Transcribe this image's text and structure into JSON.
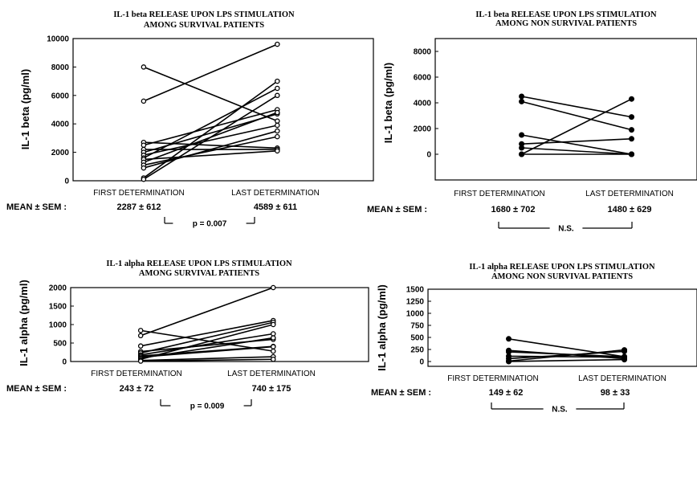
{
  "chart_data": [
    {
      "type": "line",
      "title": [
        "IL-1 beta RELEASE UPON LPS STIMULATION",
        "AMONG SURVIVAL PATIENTS"
      ],
      "ylabel": "IL-1  beta  (pg/ml)",
      "categories": [
        "FIRST DETERMINATION",
        "LAST DETERMINATION"
      ],
      "ylim": [
        0,
        10000
      ],
      "yticks": [
        "0",
        "2000",
        "4000",
        "6000",
        "8000",
        "10000"
      ],
      "yticks_values": [
        0,
        2000,
        4000,
        6000,
        8000,
        10000
      ],
      "marker": "open",
      "series": [
        {
          "values": [
            8000,
            4200
          ]
        },
        {
          "values": [
            5600,
            9600
          ]
        },
        {
          "values": [
            2700,
            2300
          ]
        },
        {
          "values": [
            2500,
            5000
          ]
        },
        {
          "values": [
            2200,
            2200
          ]
        },
        {
          "values": [
            2000,
            4700
          ]
        },
        {
          "values": [
            1800,
            3900
          ]
        },
        {
          "values": [
            1600,
            6500
          ]
        },
        {
          "values": [
            1500,
            2100
          ]
        },
        {
          "values": [
            1300,
            4800
          ]
        },
        {
          "values": [
            1100,
            3100
          ]
        },
        {
          "values": [
            900,
            3500
          ]
        },
        {
          "values": [
            200,
            7000
          ]
        },
        {
          "values": [
            100,
            6000
          ]
        }
      ],
      "mean_label": "MEAN ± SEM :",
      "means": [
        "2287  ±  612",
        "4589  ±  611"
      ],
      "significance": "p  =  0.007"
    },
    {
      "type": "line",
      "title": [
        "IL-1 beta RELEASE UPON LPS STIMULATION",
        "AMONG NON SURVIVAL PATIENTS"
      ],
      "ylabel": "IL-1  beta  (pg/ml)",
      "categories": [
        "FIRST DETERMINATION",
        "LAST DETERMINATION"
      ],
      "ylim": [
        -2000,
        9000
      ],
      "yticks": [
        "0",
        "2000",
        "4000",
        "6000",
        "8000"
      ],
      "yticks_values": [
        0,
        2000,
        4000,
        6000,
        8000
      ],
      "marker": "filled",
      "series": [
        {
          "values": [
            4500,
            2900
          ]
        },
        {
          "values": [
            4100,
            1900
          ]
        },
        {
          "values": [
            1500,
            0
          ]
        },
        {
          "values": [
            800,
            1200
          ]
        },
        {
          "values": [
            500,
            0
          ]
        },
        {
          "values": [
            0,
            4300
          ]
        },
        {
          "values": [
            0,
            0
          ]
        }
      ],
      "mean_label": "MEAN ± SEM :",
      "means": [
        "1680  ±  702",
        "1480  ±  629"
      ],
      "significance": "N.S."
    },
    {
      "type": "line",
      "title": [
        "IL-1 alpha RELEASE UPON LPS STIMULATION",
        "AMONG SURVIVAL PATIENTS"
      ],
      "ylabel": "IL-1  alpha  (pg/ml)",
      "categories": [
        "FIRST DETERMINATION",
        "LAST DETERMINATION"
      ],
      "ylim": [
        0,
        2000
      ],
      "yticks": [
        "0",
        "500",
        "1000",
        "1500",
        "2000"
      ],
      "yticks_values": [
        0,
        500,
        1000,
        1500,
        2000
      ],
      "marker": "open",
      "series": [
        {
          "values": [
            840,
            280
          ]
        },
        {
          "values": [
            700,
            2000
          ]
        },
        {
          "values": [
            420,
            1110
          ]
        },
        {
          "values": [
            270,
            600
          ]
        },
        {
          "values": [
            230,
            1060
          ]
        },
        {
          "values": [
            180,
            750
          ]
        },
        {
          "values": [
            150,
            410
          ]
        },
        {
          "values": [
            120,
            400
          ]
        },
        {
          "values": [
            90,
            640
          ]
        },
        {
          "values": [
            60,
            1000
          ]
        },
        {
          "values": [
            30,
            130
          ]
        },
        {
          "values": [
            10,
            60
          ]
        }
      ],
      "mean_label": "MEAN ± SEM :",
      "means": [
        "243  ±  72",
        "740  ±  175"
      ],
      "significance": "p  =  0.009"
    },
    {
      "type": "line",
      "title": [
        "IL-1 alpha RELEASE UPON LPS STIMULATION",
        "AMONG NON SURVIVAL PATIENTS"
      ],
      "ylabel": "IL-1  alpha  (pg/ml)",
      "categories": [
        "FIRST DETERMINATION",
        "LAST DETERMINATION"
      ],
      "ylim": [
        -100,
        1500
      ],
      "yticks": [
        "0",
        "250",
        "500",
        "750",
        "1000",
        "1250",
        "1500"
      ],
      "yticks_values": [
        0,
        250,
        500,
        750,
        1000,
        1250,
        1500
      ],
      "marker": "filled",
      "series": [
        {
          "values": [
            470,
            100
          ]
        },
        {
          "values": [
            230,
            60
          ]
        },
        {
          "values": [
            200,
            100
          ]
        },
        {
          "values": [
            110,
            90
          ]
        },
        {
          "values": [
            60,
            210
          ]
        },
        {
          "values": [
            10,
            240
          ]
        },
        {
          "values": [
            0,
            40
          ]
        }
      ],
      "mean_label": "MEAN ± SEM :",
      "means": [
        "149  ±  62",
        "98  ±  33"
      ],
      "significance": "N.S."
    }
  ]
}
